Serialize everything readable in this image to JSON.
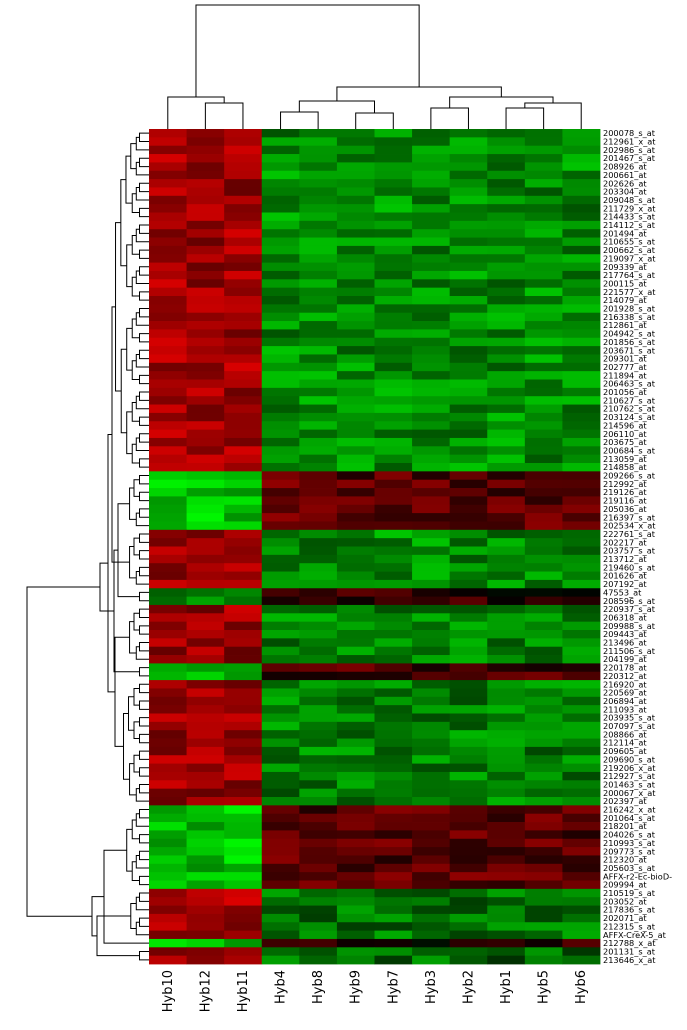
{
  "chart_data": {
    "type": "heatmap",
    "title": "",
    "xlabel": "",
    "ylabel": "",
    "color_scale": {
      "low": "#00ff00",
      "mid": "#000000",
      "high": "#ff0000"
    },
    "columns": [
      "Hyb10",
      "Hyb12",
      "Hyb11",
      "Hyb4",
      "Hyb8",
      "Hyb9",
      "Hyb7",
      "Hyb3",
      "Hyb2",
      "Hyb1",
      "Hyb5",
      "Hyb6"
    ],
    "row_label_list": [
      "200078_s_at",
      "212961_x_at",
      "202986_s_at",
      "201467_s_at",
      "208926_at",
      "200661_at",
      "202626_at",
      "203304_at",
      "209048_s_at",
      "211729_x_at",
      "214433_s_at",
      "214112_s_at",
      "201494_at",
      "210655_s_at",
      "200662_s_at",
      "219097_x_at",
      "209339_at",
      "217764_s_at",
      "200115_at",
      "221577_x_at",
      "214079_at",
      "201928_s_at",
      "216338_s_at",
      "212861_at",
      "204942_s_at",
      "201856_s_at",
      "203671_s_at",
      "209301_at",
      "202777_at",
      "211894_at",
      "206463_s_at",
      "201056_at",
      "210627_s_at",
      "210762_s_at",
      "203124_s_at",
      "214596_at",
      "206110_at",
      "203675_at",
      "200684_s_at",
      "213059_at",
      "214858_at",
      "209266_s_at",
      "212992_at",
      "219126_at",
      "219116_at",
      "205036_at",
      "216397_s_at",
      "202534_x_at",
      "222761_s_at",
      "202217_at",
      "203757_s_at",
      "213712_at",
      "219460_s_at",
      "201626_at",
      "207192_at",
      "47553_at",
      "208596_s_at",
      "220937_s_at",
      "206318_at",
      "209988_s_at",
      "209443_at",
      "213496_at",
      "211506_s_at",
      "204199_at",
      "220178_at",
      "220312_at",
      "216920_at",
      "220569_at",
      "206894_at",
      "211093_at",
      "203935_s_at",
      "207097_s_at",
      "208866_at",
      "212114_at",
      "209605_at",
      "209690_s_at",
      "219206_x_at",
      "212927_s_at",
      "201463_s_at",
      "200067_x_at",
      "202397_at",
      "216242_x_at",
      "201064_s_at",
      "218201_at",
      "204026_s_at",
      "210993_s_at",
      "209773_s_at",
      "212320_at",
      "205603_s_at",
      "AFFX-r2-Ec-bioD-",
      "209994_at",
      "210519_s_at",
      "203052_at",
      "217836_s_at",
      "202071_at",
      "212315_s_at",
      "AFFX-CreX-5_at",
      "212788_x_at",
      "201131_s_at",
      "213646_x_at"
    ],
    "row_groups": [
      {
        "count": 41,
        "left": 0.62,
        "right": -0.55
      },
      {
        "count": 7,
        "left": -0.75,
        "right": 0.35
      },
      {
        "count": 7,
        "left": 0.6,
        "right": -0.55
      },
      {
        "count": 2,
        "left": -0.55,
        "right": 0.15
      },
      {
        "count": 7,
        "left": 0.6,
        "right": -0.5
      },
      {
        "count": 2,
        "left": -0.7,
        "right": 0.3
      },
      {
        "count": 15,
        "left": 0.6,
        "right": -0.5
      },
      {
        "count": 10,
        "left": -0.75,
        "right": 0.35
      },
      {
        "count": 6,
        "left": 0.65,
        "right": -0.45
      },
      {
        "count": 1,
        "left": -0.8,
        "right": 0.15
      },
      {
        "count": 2,
        "left": 0.6,
        "right": -0.4
      }
    ]
  }
}
